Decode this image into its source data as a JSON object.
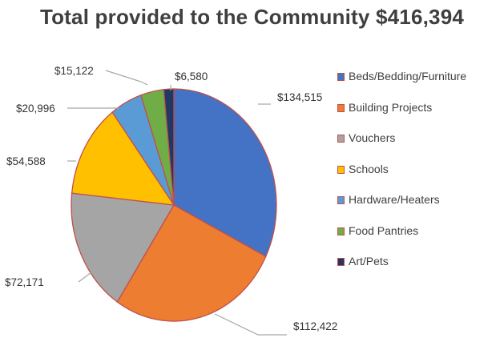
{
  "chart_data": {
    "type": "pie",
    "title": "Total provided to the Community $416,394",
    "slice_outline_color": "#c0504d",
    "legend_placement": "right",
    "slices": [
      {
        "label": "Beds/Bedding/Furniture",
        "value": 134515,
        "value_label": "$134,515",
        "color": "#4472c4"
      },
      {
        "label": "Building Projects",
        "value": 112422,
        "value_label": "$112,422",
        "color": "#ed7d31"
      },
      {
        "label": "Vouchers",
        "value": 72171,
        "value_label": "$72,171",
        "color": "#a5a5a5"
      },
      {
        "label": "Schools",
        "value": 54588,
        "value_label": "$54,588",
        "color": "#ffc000"
      },
      {
        "label": "Hardware/Heaters",
        "value": 20996,
        "value_label": "$20,996",
        "color": "#5b9bd5"
      },
      {
        "label": "Food Pantries",
        "value": 15122,
        "value_label": "$15,122",
        "color": "#70ad47"
      },
      {
        "label": "Art/Pets",
        "value": 6580,
        "value_label": "$6,580",
        "color": "#203864"
      }
    ]
  }
}
